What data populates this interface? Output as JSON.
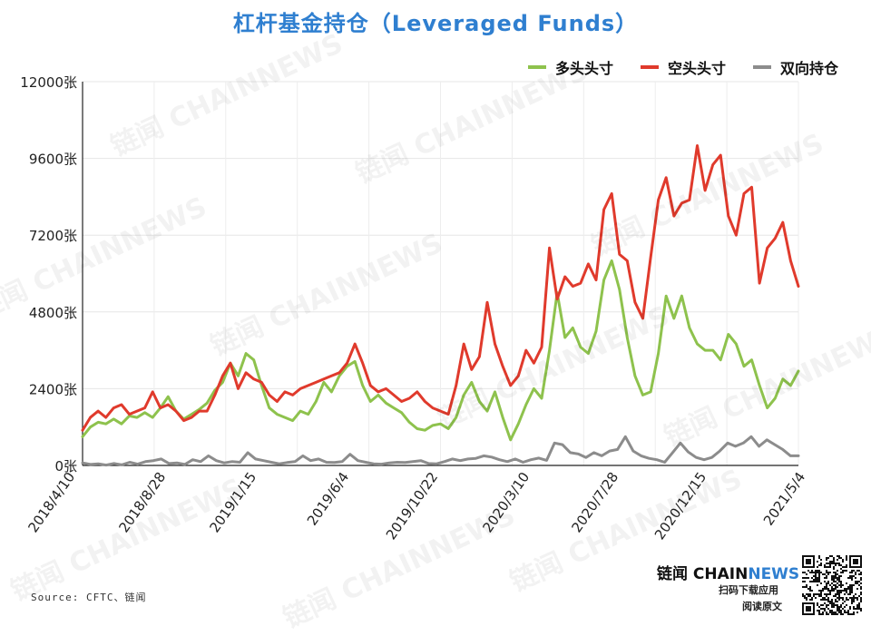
{
  "title": "杠杆基金持仓（Leveraged Funds）",
  "legend": [
    {
      "label": "多头头寸",
      "color": "#8ec24d"
    },
    {
      "label": "空头头寸",
      "color": "#e03a2c"
    },
    {
      "label": "双向持仓",
      "color": "#8c8c8c"
    }
  ],
  "watermark": "链闻 CHAINNEWS",
  "source": "Source: CFTC、链闻",
  "brand": {
    "cn": "链闻",
    "en_a": "CHAIN",
    "en_b": "NEWS",
    "line1": "扫码下载应用",
    "line2": "阅读原文"
  },
  "chart_data": {
    "type": "line",
    "title": "杠杆基金持仓（Leveraged Funds）",
    "ylim": [
      0,
      12000
    ],
    "yticks": [
      0,
      2400,
      4800,
      7200,
      9600,
      12000
    ],
    "ytick_labels": [
      "0张",
      "2400张",
      "4800张",
      "7200张",
      "9600张",
      "12000张"
    ],
    "xtick_labels": [
      "2018/4/10",
      "2018/8/28",
      "2019/1/15",
      "2019/6/4",
      "2019/10/22",
      "2020/3/10",
      "2020/7/28",
      "2020/12/15",
      "2021/5/4"
    ],
    "grid": true,
    "legend_position": "top-right",
    "series": [
      {
        "name": "多头头寸",
        "color": "#8ec24d",
        "x": [
          0,
          2,
          4,
          6,
          8,
          10,
          12,
          14,
          16,
          18,
          20,
          22,
          24,
          26,
          28,
          30,
          32,
          34,
          36,
          38,
          40,
          42,
          44,
          46,
          48,
          50,
          52,
          54,
          56,
          58,
          60,
          62,
          64,
          66,
          68,
          70,
          72,
          74,
          76,
          78,
          80,
          82,
          84,
          86,
          88,
          90,
          92,
          94,
          96,
          98,
          100,
          102,
          104,
          106,
          108,
          110,
          112,
          114,
          116,
          118,
          120,
          122,
          124,
          126,
          128,
          130,
          132,
          134,
          136,
          138,
          140,
          142,
          144,
          146,
          148,
          150,
          152,
          154,
          156,
          158,
          160
        ],
        "values": [
          900,
          1200,
          1350,
          1300,
          1450,
          1300,
          1550,
          1500,
          1650,
          1500,
          1800,
          2150,
          1700,
          1450,
          1600,
          1750,
          1950,
          2350,
          2600,
          3200,
          2800,
          3500,
          3300,
          2500,
          1800,
          1600,
          1500,
          1400,
          1700,
          1600,
          2000,
          2600,
          2300,
          2800,
          3100,
          3250,
          2500,
          2000,
          2200,
          1950,
          1800,
          1650,
          1350,
          1150,
          1100,
          1250,
          1300,
          1150,
          1500,
          2200,
          2600,
          2000,
          1700,
          2300,
          1500,
          800,
          1300,
          1900,
          2400,
          2100,
          3600,
          5400,
          4000,
          4300,
          3700,
          3500,
          4200,
          5800,
          6400,
          5500,
          4000,
          2800,
          2200,
          2300,
          3500,
          5300,
          4600,
          5300,
          4300,
          3800,
          3600
        ],
        "extra_x": [
          162,
          164,
          166,
          168,
          170,
          172,
          174,
          176,
          178,
          180,
          182,
          184
        ],
        "extra_values": [
          3600,
          3300,
          4100,
          3800,
          3100,
          3300,
          2500,
          1800,
          2100,
          2700,
          2500,
          2950
        ]
      }
    ]
  }
}
